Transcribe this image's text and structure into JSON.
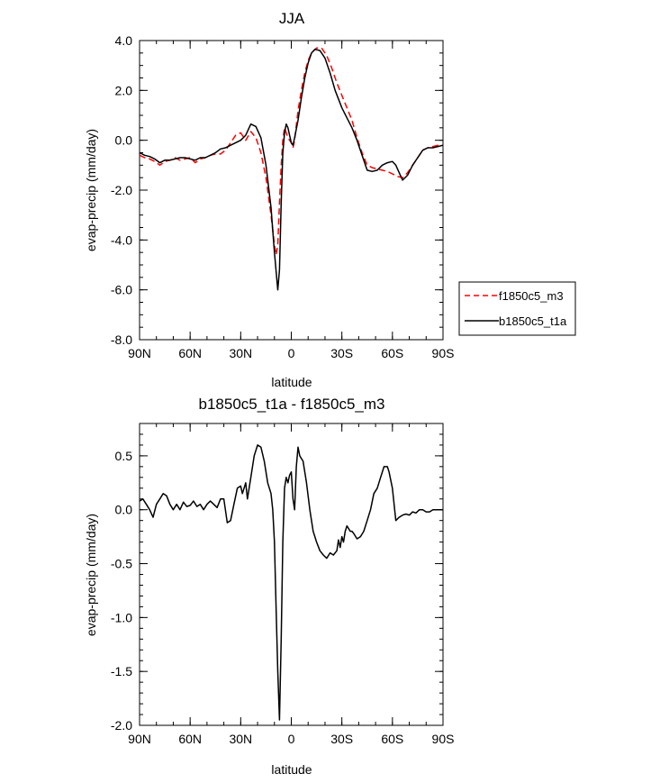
{
  "chart_data": [
    {
      "type": "line",
      "title": "JJA",
      "xlabel": "latitude",
      "ylabel": "evap-precip (mm/day)",
      "xlim": [
        90,
        -90
      ],
      "ylim": [
        -8.0,
        4.0
      ],
      "x_ticks": [
        {
          "value": 90,
          "label": "90N"
        },
        {
          "value": 60,
          "label": "60N"
        },
        {
          "value": 30,
          "label": "30N"
        },
        {
          "value": 0,
          "label": "0"
        },
        {
          "value": -30,
          "label": "30S"
        },
        {
          "value": -60,
          "label": "60S"
        },
        {
          "value": -90,
          "label": "90S"
        }
      ],
      "y_ticks": [
        {
          "value": 4.0,
          "label": "4.0"
        },
        {
          "value": 2.0,
          "label": "2.0"
        },
        {
          "value": 0.0,
          "label": "0.0"
        },
        {
          "value": -2.0,
          "label": "-2.0"
        },
        {
          "value": -4.0,
          "label": "-4.0"
        },
        {
          "value": -6.0,
          "label": "-6.0"
        },
        {
          "value": -8.0,
          "label": "-8.0"
        }
      ],
      "grid": false,
      "legend": "right",
      "series": [
        {
          "name": "f1850c5_m3",
          "color": "#ff0000",
          "dash": "dashed",
          "points": [
            [
              90,
              -0.6
            ],
            [
              87,
              -0.7
            ],
            [
              84,
              -0.75
            ],
            [
              81,
              -0.85
            ],
            [
              78,
              -1.0
            ],
            [
              75,
              -0.85
            ],
            [
              72,
              -0.8
            ],
            [
              69,
              -0.7
            ],
            [
              66,
              -0.8
            ],
            [
              63,
              -0.75
            ],
            [
              60,
              -0.7
            ],
            [
              57,
              -0.9
            ],
            [
              54,
              -0.75
            ],
            [
              51,
              -0.7
            ],
            [
              48,
              -0.6
            ],
            [
              45,
              -0.55
            ],
            [
              42,
              -0.55
            ],
            [
              39,
              -0.4
            ],
            [
              36,
              -0.1
            ],
            [
              33,
              0.2
            ],
            [
              30,
              0.3
            ],
            [
              27,
              0.0
            ],
            [
              24,
              0.35
            ],
            [
              21,
              0.1
            ],
            [
              18,
              -0.5
            ],
            [
              15,
              -1.5
            ],
            [
              12,
              -3.0
            ],
            [
              10,
              -4.2
            ],
            [
              9,
              -4.6
            ],
            [
              8,
              -4.2
            ],
            [
              7,
              -2.5
            ],
            [
              6,
              -1.0
            ],
            [
              5,
              0.0
            ],
            [
              4,
              0.5
            ],
            [
              3,
              0.3
            ],
            [
              2,
              0.1
            ],
            [
              1,
              0.0
            ],
            [
              0,
              -0.1
            ],
            [
              -1,
              -0.3
            ],
            [
              -2,
              0.0
            ],
            [
              -3,
              0.6
            ],
            [
              -4,
              1.2
            ],
            [
              -6,
              2.0
            ],
            [
              -8,
              2.7
            ],
            [
              -10,
              3.2
            ],
            [
              -12,
              3.5
            ],
            [
              -15,
              3.7
            ],
            [
              -18,
              3.7
            ],
            [
              -21,
              3.4
            ],
            [
              -24,
              2.9
            ],
            [
              -27,
              2.3
            ],
            [
              -30,
              1.8
            ],
            [
              -33,
              1.3
            ],
            [
              -36,
              0.8
            ],
            [
              -39,
              0.1
            ],
            [
              -42,
              -0.5
            ],
            [
              -45,
              -1.0
            ],
            [
              -48,
              -1.1
            ],
            [
              -51,
              -1.15
            ],
            [
              -54,
              -1.2
            ],
            [
              -57,
              -1.25
            ],
            [
              -60,
              -1.35
            ],
            [
              -63,
              -1.45
            ],
            [
              -66,
              -1.5
            ],
            [
              -69,
              -1.3
            ],
            [
              -72,
              -1.0
            ],
            [
              -75,
              -0.7
            ],
            [
              -78,
              -0.4
            ],
            [
              -81,
              -0.3
            ],
            [
              -84,
              -0.25
            ],
            [
              -87,
              -0.2
            ],
            [
              -90,
              -0.2
            ]
          ]
        },
        {
          "name": "b1850c5_t1a",
          "color": "#000000",
          "dash": "solid",
          "points": [
            [
              90,
              -0.5
            ],
            [
              87,
              -0.6
            ],
            [
              84,
              -0.65
            ],
            [
              81,
              -0.75
            ],
            [
              78,
              -0.9
            ],
            [
              75,
              -0.8
            ],
            [
              72,
              -0.8
            ],
            [
              69,
              -0.75
            ],
            [
              66,
              -0.7
            ],
            [
              63,
              -0.7
            ],
            [
              60,
              -0.75
            ],
            [
              57,
              -0.8
            ],
            [
              54,
              -0.7
            ],
            [
              51,
              -0.7
            ],
            [
              48,
              -0.6
            ],
            [
              45,
              -0.5
            ],
            [
              42,
              -0.35
            ],
            [
              39,
              -0.3
            ],
            [
              36,
              -0.2
            ],
            [
              33,
              -0.1
            ],
            [
              30,
              0.0
            ],
            [
              27,
              0.2
            ],
            [
              24,
              0.65
            ],
            [
              21,
              0.55
            ],
            [
              18,
              0.1
            ],
            [
              15,
              -1.0
            ],
            [
              12,
              -2.7
            ],
            [
              10,
              -4.5
            ],
            [
              8,
              -6.0
            ],
            [
              7,
              -5.2
            ],
            [
              6,
              -2.5
            ],
            [
              5,
              -0.5
            ],
            [
              4,
              0.3
            ],
            [
              3,
              0.65
            ],
            [
              2,
              0.5
            ],
            [
              1,
              0.2
            ],
            [
              0,
              -0.1
            ],
            [
              -1,
              -0.2
            ],
            [
              -2,
              0.1
            ],
            [
              -4,
              0.8
            ],
            [
              -6,
              1.7
            ],
            [
              -8,
              2.5
            ],
            [
              -10,
              3.1
            ],
            [
              -12,
              3.5
            ],
            [
              -14,
              3.65
            ],
            [
              -17,
              3.6
            ],
            [
              -20,
              3.3
            ],
            [
              -23,
              2.7
            ],
            [
              -26,
              2.0
            ],
            [
              -30,
              1.3
            ],
            [
              -33,
              0.9
            ],
            [
              -36,
              0.5
            ],
            [
              -39,
              0.0
            ],
            [
              -42,
              -0.6
            ],
            [
              -45,
              -1.2
            ],
            [
              -48,
              -1.25
            ],
            [
              -51,
              -1.2
            ],
            [
              -54,
              -1.0
            ],
            [
              -57,
              -0.9
            ],
            [
              -60,
              -0.85
            ],
            [
              -62,
              -1.0
            ],
            [
              -64,
              -1.3
            ],
            [
              -66,
              -1.6
            ],
            [
              -69,
              -1.4
            ],
            [
              -72,
              -1.0
            ],
            [
              -75,
              -0.7
            ],
            [
              -78,
              -0.4
            ],
            [
              -81,
              -0.3
            ],
            [
              -84,
              -0.3
            ],
            [
              -87,
              -0.25
            ],
            [
              -90,
              -0.2
            ]
          ]
        }
      ]
    },
    {
      "type": "line",
      "title": "b1850c5_t1a - f1850c5_m3",
      "xlabel": "latitude",
      "ylabel": "evap-precip (mm/day)",
      "xlim": [
        90,
        -90
      ],
      "ylim": [
        -2.0,
        0.8
      ],
      "x_ticks": [
        {
          "value": 90,
          "label": "90N"
        },
        {
          "value": 60,
          "label": "60N"
        },
        {
          "value": 30,
          "label": "30N"
        },
        {
          "value": 0,
          "label": "0"
        },
        {
          "value": -30,
          "label": "30S"
        },
        {
          "value": -60,
          "label": "60S"
        },
        {
          "value": -90,
          "label": "90S"
        }
      ],
      "y_ticks": [
        {
          "value": 0.5,
          "label": "0.5"
        },
        {
          "value": 0.0,
          "label": "0.0"
        },
        {
          "value": -0.5,
          "label": "-0.5"
        },
        {
          "value": -1.0,
          "label": "-1.0"
        },
        {
          "value": -1.5,
          "label": "-1.5"
        },
        {
          "value": -2.0,
          "label": "-2.0"
        }
      ],
      "grid": false,
      "series": [
        {
          "color": "#000000",
          "dash": "solid",
          "points": [
            [
              90,
              0.08
            ],
            [
              88,
              0.1
            ],
            [
              86,
              0.05
            ],
            [
              84,
              0.0
            ],
            [
              82,
              -0.07
            ],
            [
              80,
              0.05
            ],
            [
              78,
              0.1
            ],
            [
              76,
              0.15
            ],
            [
              74,
              0.13
            ],
            [
              72,
              0.05
            ],
            [
              70,
              0.0
            ],
            [
              68,
              0.05
            ],
            [
              66,
              0.0
            ],
            [
              64,
              0.07
            ],
            [
              62,
              0.03
            ],
            [
              60,
              0.04
            ],
            [
              58,
              0.08
            ],
            [
              56,
              0.03
            ],
            [
              54,
              0.05
            ],
            [
              52,
              0.0
            ],
            [
              50,
              0.05
            ],
            [
              48,
              0.08
            ],
            [
              46,
              0.05
            ],
            [
              44,
              0.02
            ],
            [
              42,
              0.1
            ],
            [
              40,
              0.1
            ],
            [
              38,
              -0.12
            ],
            [
              36,
              -0.1
            ],
            [
              34,
              0.05
            ],
            [
              32,
              0.2
            ],
            [
              30,
              0.22
            ],
            [
              29,
              0.15
            ],
            [
              27,
              0.25
            ],
            [
              26,
              0.1
            ],
            [
              24,
              0.3
            ],
            [
              22,
              0.5
            ],
            [
              20,
              0.6
            ],
            [
              18,
              0.58
            ],
            [
              16,
              0.45
            ],
            [
              14,
              0.25
            ],
            [
              12,
              0.15
            ],
            [
              11,
              0.0
            ],
            [
              10,
              -0.3
            ],
            [
              9,
              -0.9
            ],
            [
              8,
              -1.5
            ],
            [
              7,
              -1.95
            ],
            [
              6,
              -1.2
            ],
            [
              5,
              -0.3
            ],
            [
              4,
              0.2
            ],
            [
              3,
              0.3
            ],
            [
              2,
              0.25
            ],
            [
              1,
              0.32
            ],
            [
              0,
              0.35
            ],
            [
              -1,
              0.1
            ],
            [
              -2,
              0.0
            ],
            [
              -3,
              0.4
            ],
            [
              -4,
              0.58
            ],
            [
              -5,
              0.5
            ],
            [
              -7,
              0.45
            ],
            [
              -9,
              0.25
            ],
            [
              -11,
              0.0
            ],
            [
              -13,
              -0.2
            ],
            [
              -15,
              -0.3
            ],
            [
              -17,
              -0.38
            ],
            [
              -19,
              -0.42
            ],
            [
              -21,
              -0.45
            ],
            [
              -23,
              -0.4
            ],
            [
              -25,
              -0.42
            ],
            [
              -27,
              -0.38
            ],
            [
              -28,
              -0.28
            ],
            [
              -29,
              -0.35
            ],
            [
              -30,
              -0.25
            ],
            [
              -31,
              -0.3
            ],
            [
              -32,
              -0.2
            ],
            [
              -33,
              -0.15
            ],
            [
              -35,
              -0.2
            ],
            [
              -36,
              -0.2
            ],
            [
              -37,
              -0.22
            ],
            [
              -39,
              -0.27
            ],
            [
              -41,
              -0.25
            ],
            [
              -43,
              -0.2
            ],
            [
              -45,
              -0.1
            ],
            [
              -47,
              0.0
            ],
            [
              -49,
              0.15
            ],
            [
              -51,
              0.2
            ],
            [
              -53,
              0.3
            ],
            [
              -55,
              0.4
            ],
            [
              -57,
              0.4
            ],
            [
              -58,
              0.35
            ],
            [
              -60,
              0.2
            ],
            [
              -62,
              -0.1
            ],
            [
              -64,
              -0.07
            ],
            [
              -66,
              -0.05
            ],
            [
              -68,
              -0.04
            ],
            [
              -70,
              -0.05
            ],
            [
              -72,
              -0.02
            ],
            [
              -74,
              -0.03
            ],
            [
              -76,
              0.0
            ],
            [
              -78,
              0.0
            ],
            [
              -80,
              -0.02
            ],
            [
              -82,
              -0.02
            ],
            [
              -84,
              0.0
            ],
            [
              -86,
              0.0
            ],
            [
              -88,
              0.0
            ],
            [
              -90,
              0.0
            ]
          ]
        }
      ]
    }
  ]
}
